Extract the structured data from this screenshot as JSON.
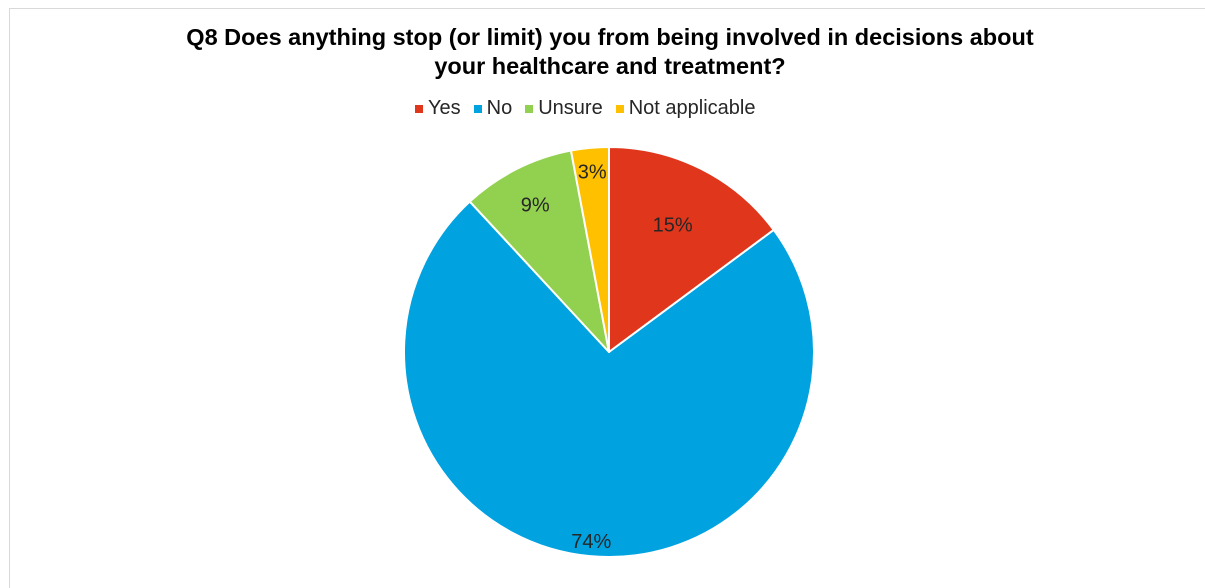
{
  "chart_data": {
    "type": "pie",
    "title_lines": [
      "Q8 Does anything stop (or limit)  you from being involved in decisions about",
      "your healthcare and treatment?"
    ],
    "categories": [
      "Yes",
      "No",
      "Unsure",
      "Not applicable"
    ],
    "values": [
      15,
      74,
      9,
      3
    ],
    "labels": [
      "15%",
      "74%",
      "9%",
      "3%"
    ],
    "colors": [
      "#e0361b",
      "#00a2e0",
      "#92d050",
      "#ffc000"
    ],
    "legend_placement": "top"
  }
}
